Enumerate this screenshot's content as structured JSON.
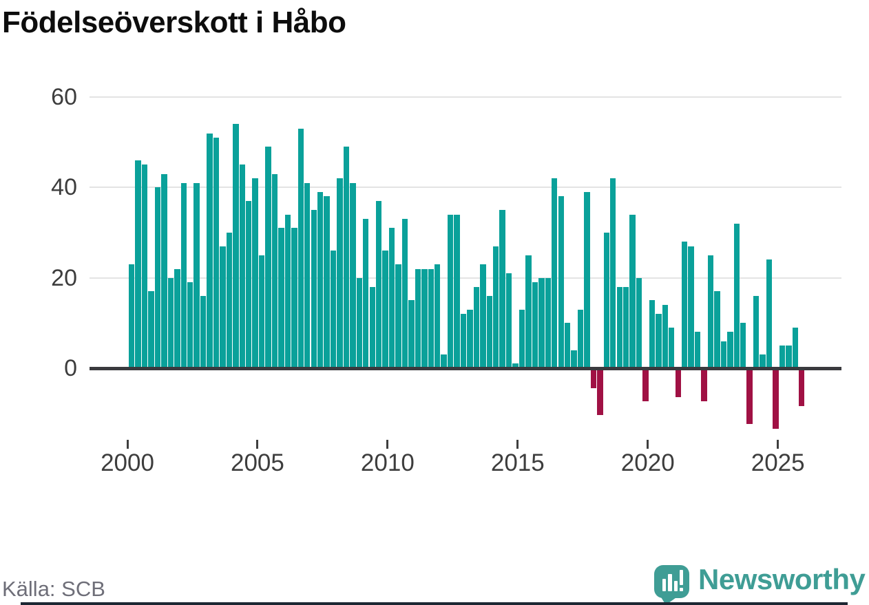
{
  "title": "Födelseöverskott i Håbo",
  "source": "Källa: SCB",
  "logo_text": "Newsworthy",
  "colors": {
    "positive_bar": "#0aa19a",
    "negative_bar": "#a01144",
    "gridline": "#e3e3e3",
    "zero_axis": "#3a3a3e",
    "axis_text": "#3d3d3d",
    "source_text": "#6e6e78",
    "title_text": "#0d0d0d",
    "logo_teal": "#3f9d95"
  },
  "chart_data": {
    "type": "bar",
    "title": "Födelseöverskott i Håbo",
    "xlabel": "",
    "ylabel": "",
    "frequency": "quarterly",
    "x_start": "2000-Q1",
    "x_end": "2025-Q4",
    "grid": "horizontal",
    "legend": "none",
    "ylim": [
      -15,
      62
    ],
    "y_ticks": [
      0,
      20,
      40,
      60
    ],
    "y_tick_labels": [
      "0",
      "20",
      "40",
      "60"
    ],
    "x_ticks": [
      2000,
      2005,
      2010,
      2015,
      2020,
      2025
    ],
    "x_tick_labels": [
      "2000",
      "2005",
      "2010",
      "2015",
      "2020",
      "2025"
    ],
    "values_by_year": {
      "2000": [
        23,
        46,
        45,
        17
      ],
      "2001": [
        40,
        43,
        20,
        22
      ],
      "2002": [
        41,
        19,
        41,
        16
      ],
      "2003": [
        52,
        51,
        27,
        30
      ],
      "2004": [
        54,
        45,
        37,
        42
      ],
      "2005": [
        25,
        49,
        43,
        31
      ],
      "2006": [
        34,
        31,
        53,
        41
      ],
      "2007": [
        35,
        39,
        38,
        26
      ],
      "2008": [
        42,
        49,
        41,
        20
      ],
      "2009": [
        33,
        18,
        37,
        26
      ],
      "2010": [
        31,
        23,
        33,
        15
      ],
      "2011": [
        22,
        22,
        22,
        23
      ],
      "2012": [
        3,
        34,
        34,
        12
      ],
      "2013": [
        13,
        18,
        23,
        16
      ],
      "2014": [
        27,
        35,
        21,
        1
      ],
      "2015": [
        13,
        25,
        19,
        20
      ],
      "2016": [
        20,
        42,
        38,
        10
      ],
      "2017": [
        4,
        13,
        39,
        -4
      ],
      "2018": [
        -10,
        30,
        42,
        18
      ],
      "2019": [
        18,
        34,
        20,
        -7
      ],
      "2020": [
        15,
        12,
        14,
        9
      ],
      "2021": [
        -6,
        28,
        27,
        8
      ],
      "2022": [
        -7,
        25,
        17,
        6
      ],
      "2023": [
        8,
        32,
        10,
        -12
      ],
      "2024": [
        16,
        3,
        24,
        -13
      ],
      "2025": [
        5,
        5,
        9,
        -8
      ]
    }
  }
}
